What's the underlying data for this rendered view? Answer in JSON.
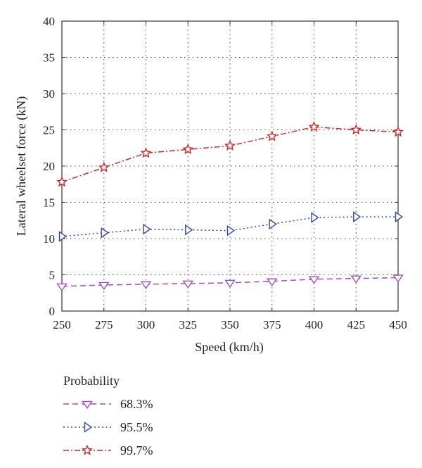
{
  "chart_data": {
    "type": "line",
    "title": "",
    "xlabel": "Speed (km/h)",
    "ylabel": "Lateral wheelset force (kN)",
    "xlim": [
      250,
      450
    ],
    "ylim": [
      0,
      40
    ],
    "x": [
      250,
      275,
      300,
      325,
      350,
      375,
      400,
      425,
      450
    ],
    "x_ticks": [
      "250",
      "275",
      "300",
      "325",
      "350",
      "375",
      "400",
      "425",
      "450"
    ],
    "y_ticks": [
      "0",
      "5",
      "10",
      "15",
      "20",
      "25",
      "30",
      "35",
      "40"
    ],
    "grid": true,
    "legend": {
      "title": "Probability",
      "placement": "below"
    },
    "series": [
      {
        "name": "68.3%",
        "values": [
          3.4,
          3.6,
          3.7,
          3.8,
          3.9,
          4.1,
          4.4,
          4.5,
          4.6
        ],
        "color": "#a34cc4",
        "marker": "triangle-down",
        "line_style": "dashed"
      },
      {
        "name": "95.5%",
        "values": [
          10.3,
          10.8,
          11.3,
          11.2,
          11.1,
          12.0,
          12.9,
          13.0,
          13.0
        ],
        "color": "#2f47b5",
        "marker": "triangle-right",
        "line_style": "dotted"
      },
      {
        "name": "99.7%",
        "values": [
          17.8,
          19.8,
          21.8,
          22.3,
          22.8,
          24.1,
          25.4,
          25.0,
          24.7
        ],
        "color": "#d32626",
        "marker": "star",
        "line_style": "dashdot"
      }
    ]
  }
}
